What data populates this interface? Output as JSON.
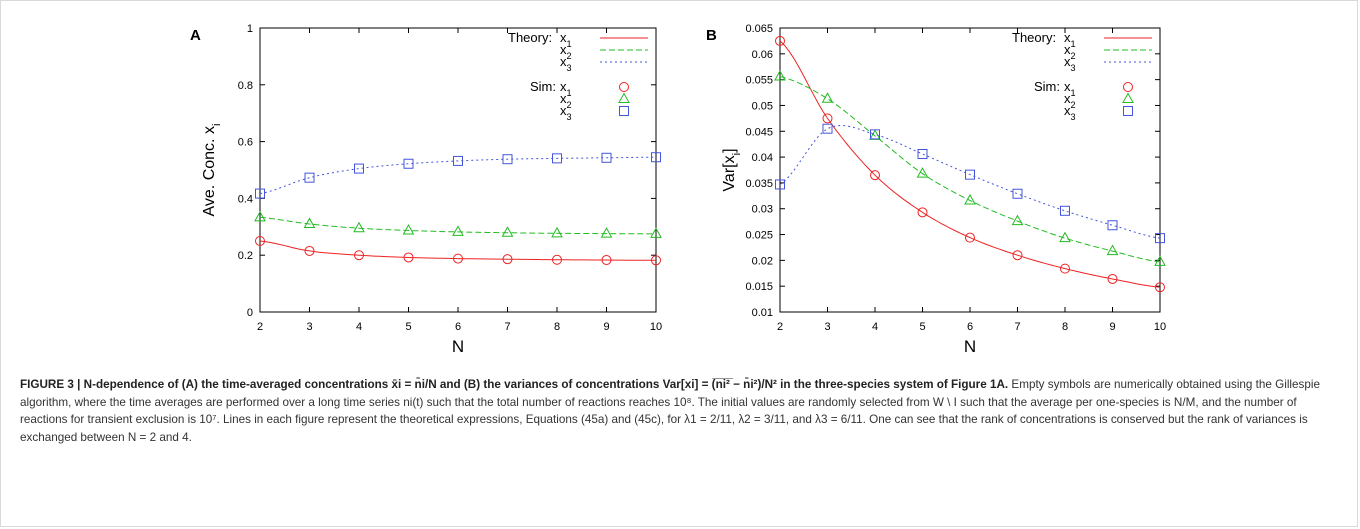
{
  "panels": [
    {
      "label": "A",
      "ylabel": "Ave. Conc. x",
      "ylabel_sub": "i",
      "xlabel": "N",
      "ylim": [
        0,
        1
      ],
      "xlim": [
        2,
        10
      ],
      "yticks": [
        "0",
        "0.2",
        "0.4",
        "0.6",
        "0.8",
        "1"
      ],
      "xticks": [
        "2",
        "3",
        "4",
        "5",
        "6",
        "7",
        "8",
        "9",
        "10"
      ],
      "legend": {
        "theory_label": "Theory:",
        "sim_label": "Sim:",
        "entries": [
          "x1",
          "x2",
          "x3"
        ]
      }
    },
    {
      "label": "B",
      "ylabel": "Var[x",
      "ylabel_sub": "i",
      "ylabel_end": "]",
      "xlabel": "N",
      "ylim": [
        0.01,
        0.065
      ],
      "xlim": [
        2,
        10
      ],
      "yticks": [
        "0.01",
        "0.015",
        "0.02",
        "0.025",
        "0.03",
        "0.035",
        "0.04",
        "0.045",
        "0.05",
        "0.055",
        "0.06",
        "0.065"
      ],
      "xticks": [
        "2",
        "3",
        "4",
        "5",
        "6",
        "7",
        "8",
        "9",
        "10"
      ],
      "legend": {
        "theory_label": "Theory:",
        "sim_label": "Sim:",
        "entries": [
          "x1",
          "x2",
          "x3"
        ]
      }
    }
  ],
  "chart_data": [
    {
      "type": "line",
      "title": "A",
      "xlabel": "N",
      "ylabel": "Ave. Conc. xi",
      "xlim": [
        2,
        10
      ],
      "ylim": [
        0,
        1
      ],
      "x": [
        2,
        3,
        4,
        5,
        6,
        7,
        8,
        9,
        10
      ],
      "series": [
        {
          "name": "x1",
          "theory": [
            0.25,
            0.215,
            0.2,
            0.192,
            0.188,
            0.186,
            0.184,
            0.183,
            0.182
          ],
          "sim": [
            0.25,
            0.215,
            0.2,
            0.192,
            0.188,
            0.186,
            0.184,
            0.183,
            0.182
          ],
          "marker": "circle",
          "color": "#ee2222"
        },
        {
          "name": "x2",
          "theory": [
            0.333,
            0.31,
            0.295,
            0.287,
            0.282,
            0.279,
            0.277,
            0.276,
            0.275
          ],
          "sim": [
            0.333,
            0.31,
            0.295,
            0.287,
            0.282,
            0.279,
            0.277,
            0.276,
            0.275
          ],
          "marker": "triangle",
          "color": "#22bb22"
        },
        {
          "name": "x3",
          "theory": [
            0.417,
            0.473,
            0.505,
            0.522,
            0.532,
            0.538,
            0.541,
            0.543,
            0.545
          ],
          "sim": [
            0.417,
            0.473,
            0.505,
            0.522,
            0.532,
            0.538,
            0.541,
            0.543,
            0.545
          ],
          "marker": "square",
          "color": "#4455dd"
        }
      ],
      "legend_position": "top-right"
    },
    {
      "type": "line",
      "title": "B",
      "xlabel": "N",
      "ylabel": "Var[xi]",
      "xlim": [
        2,
        10
      ],
      "ylim": [
        0.01,
        0.065
      ],
      "x": [
        2,
        3,
        4,
        5,
        6,
        7,
        8,
        9,
        10
      ],
      "series": [
        {
          "name": "x1",
          "theory": [
            0.0625,
            0.0475,
            0.0365,
            0.0293,
            0.0244,
            0.021,
            0.0184,
            0.0164,
            0.0148
          ],
          "sim": [
            0.0625,
            0.0475,
            0.0365,
            0.0293,
            0.0244,
            0.021,
            0.0184,
            0.0164,
            0.0148
          ],
          "marker": "circle",
          "color": "#ee2222"
        },
        {
          "name": "x2",
          "theory": [
            0.0556,
            0.0513,
            0.0441,
            0.0368,
            0.0316,
            0.0276,
            0.0243,
            0.0218,
            0.0197
          ],
          "sim": [
            0.0556,
            0.0513,
            0.0441,
            0.0368,
            0.0316,
            0.0276,
            0.0243,
            0.0218,
            0.0197
          ],
          "marker": "triangle",
          "color": "#22bb22"
        },
        {
          "name": "x3",
          "theory": [
            0.0347,
            0.0455,
            0.0444,
            0.0406,
            0.0366,
            0.0329,
            0.0296,
            0.0268,
            0.0243
          ],
          "sim": [
            0.0347,
            0.0455,
            0.0444,
            0.0406,
            0.0366,
            0.0329,
            0.0296,
            0.0268,
            0.0243
          ],
          "marker": "square",
          "color": "#4455dd"
        }
      ],
      "legend_position": "top-right"
    }
  ],
  "caption": {
    "lead": "FIGURE 3 | N-dependence of (A) the time-averaged concentrations x̄i = n̄i/N and (B) the variances of concentrations Var[xi] = (̅n̅i̅²̅ − n̄i²)/N² in the three-species system of Figure 1A.",
    "body": "Empty symbols are numerically obtained using the Gillespie algorithm, where the time averages are performed over a long time series ni(t) such that the total number of reactions reaches 10⁸. The initial values are randomly selected from W \\ I such that the average per one-species is N/M, and the number of reactions for transient exclusion is 10⁷. Lines in each figure represent the theoretical expressions, Equations (45a) and (45c), for λ1 = 2/11, λ2 = 3/11, and λ3 = 6/11. One can see that the rank of concentrations is conserved but the rank of variances is exchanged between N = 2 and 4."
  }
}
